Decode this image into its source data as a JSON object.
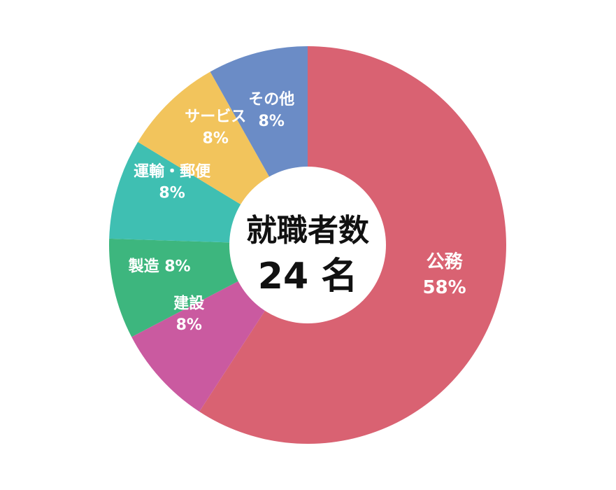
{
  "chart_data": {
    "type": "pie",
    "donut": true,
    "center": {
      "line1": "就職者数",
      "line2": "24 名"
    },
    "slices": [
      {
        "label": "公務",
        "value": 58,
        "value_label": "58%",
        "color": "#d96272"
      },
      {
        "label": "建設",
        "value": 8,
        "value_label": "8%",
        "color": "#ca5aa0"
      },
      {
        "label": "製造",
        "value": 8,
        "value_label": "8%",
        "color": "#3db67e"
      },
      {
        "label": "運輸・郵便",
        "value": 8,
        "value_label": "8%",
        "color": "#3fbfb2"
      },
      {
        "label": "サービス",
        "value": 8,
        "value_label": "8%",
        "color": "#f2c45c"
      },
      {
        "label": "その他",
        "value": 8,
        "value_label": "8%",
        "color": "#6b8cc6"
      }
    ]
  }
}
